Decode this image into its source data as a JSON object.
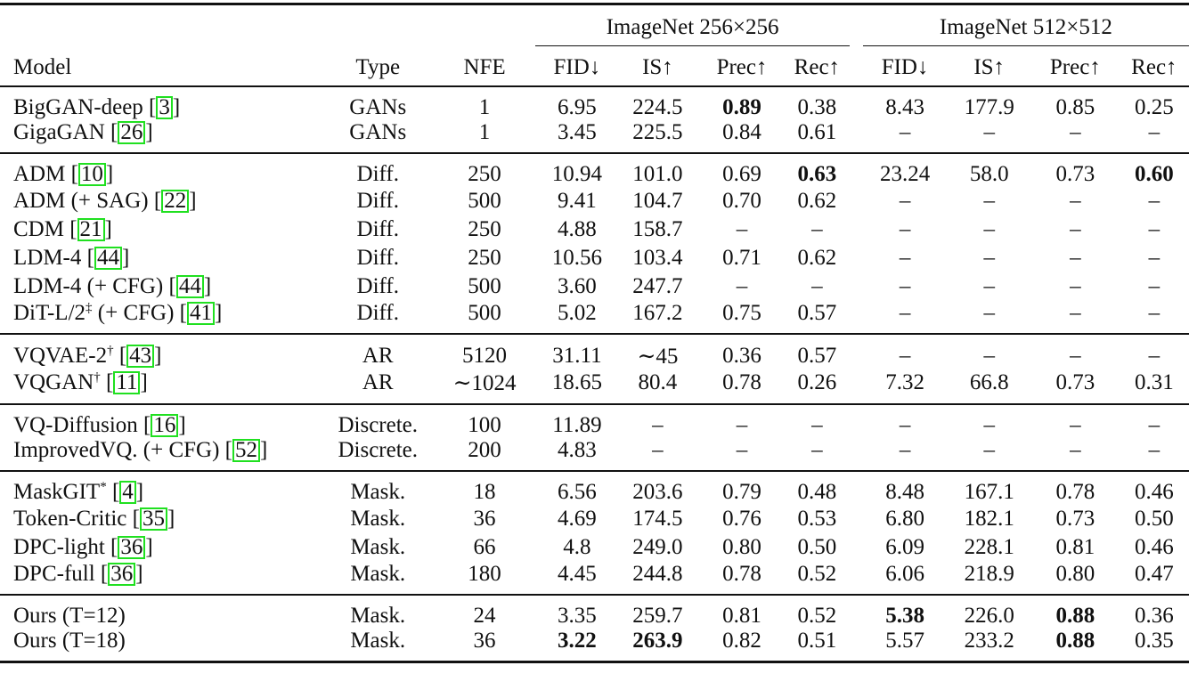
{
  "table": {
    "group_headers": [
      {
        "label": "ImageNet 256×256",
        "span": 4
      },
      {
        "label": "ImageNet 512×512",
        "span": 4
      }
    ],
    "columns": [
      "Model",
      "Type",
      "NFE",
      "FID↓",
      "IS↑",
      "Prec↑",
      "Rec↑",
      "FID↓",
      "IS↑",
      "Prec↑",
      "Rec↑"
    ],
    "sections": [
      {
        "rows": [
          {
            "model": "BigGAN-deep [",
            "sup": "",
            "cite": "3",
            "type": "GANs",
            "nfe": "1",
            "v": [
              "6.95",
              "224.5",
              "0.89",
              "0.38",
              "8.43",
              "177.9",
              "0.85",
              "0.25"
            ],
            "bold": [
              2
            ]
          },
          {
            "model": "GigaGAN [",
            "sup": "",
            "cite": "26",
            "type": "GANs",
            "nfe": "1",
            "v": [
              "3.45",
              "225.5",
              "0.84",
              "0.61",
              "–",
              "–",
              "–",
              "–"
            ],
            "bold": []
          }
        ]
      },
      {
        "rows": [
          {
            "model": "ADM [",
            "sup": "",
            "cite": "10",
            "type": "Diff.",
            "nfe": "250",
            "v": [
              "10.94",
              "101.0",
              "0.69",
              "0.63",
              "23.24",
              "58.0",
              "0.73",
              "0.60"
            ],
            "bold": [
              3,
              7
            ]
          },
          {
            "model": "ADM (+ SAG) [",
            "sup": "",
            "cite": "22",
            "type": "Diff.",
            "nfe": "500",
            "v": [
              "9.41",
              "104.7",
              "0.70",
              "0.62",
              "–",
              "–",
              "–",
              "–"
            ],
            "bold": []
          },
          {
            "model": "CDM [",
            "sup": "",
            "cite": "21",
            "type": "Diff.",
            "nfe": "250",
            "v": [
              "4.88",
              "158.7",
              "–",
              "–",
              "–",
              "–",
              "–",
              "–"
            ],
            "bold": []
          },
          {
            "model": "LDM-4 [",
            "sup": "",
            "cite": "44",
            "type": "Diff.",
            "nfe": "250",
            "v": [
              "10.56",
              "103.4",
              "0.71",
              "0.62",
              "–",
              "–",
              "–",
              "–"
            ],
            "bold": []
          },
          {
            "model": "LDM-4 (+ CFG) [",
            "sup": "",
            "cite": "44",
            "type": "Diff.",
            "nfe": "500",
            "v": [
              "3.60",
              "247.7",
              "–",
              "–",
              "–",
              "–",
              "–",
              "–"
            ],
            "bold": []
          },
          {
            "model": "DiT-L/2",
            "sup": "‡",
            "after_sup": " (+ CFG) [",
            "cite": "41",
            "type": "Diff.",
            "nfe": "500",
            "v": [
              "5.02",
              "167.2",
              "0.75",
              "0.57",
              "–",
              "–",
              "–",
              "–"
            ],
            "bold": []
          }
        ]
      },
      {
        "rows": [
          {
            "model": "VQVAE-2",
            "sup": "†",
            "after_sup": " [",
            "cite": "43",
            "type": "AR",
            "nfe": "5120",
            "v": [
              "31.11",
              "∼45",
              "0.36",
              "0.57",
              "–",
              "–",
              "–",
              "–"
            ],
            "bold": []
          },
          {
            "model": "VQGAN",
            "sup": "†",
            "after_sup": " [",
            "cite": "11",
            "type": "AR",
            "nfe": "∼1024",
            "v": [
              "18.65",
              "80.4",
              "0.78",
              "0.26",
              "7.32",
              "66.8",
              "0.73",
              "0.31"
            ],
            "bold": []
          }
        ]
      },
      {
        "rows": [
          {
            "model": "VQ-Diffusion [",
            "sup": "",
            "cite": "16",
            "type": "Discrete.",
            "nfe": "100",
            "v": [
              "11.89",
              "–",
              "–",
              "–",
              "–",
              "–",
              "–",
              "–"
            ],
            "bold": []
          },
          {
            "model": "ImprovedVQ. (+ CFG) [",
            "sup": "",
            "cite": "52",
            "type": "Discrete.",
            "nfe": "200",
            "v": [
              "4.83",
              "–",
              "–",
              "–",
              "–",
              "–",
              "–",
              "–"
            ],
            "bold": []
          }
        ]
      },
      {
        "rows": [
          {
            "model": "MaskGIT",
            "sup": "*",
            "after_sup": " [",
            "cite": "4",
            "type": "Mask.",
            "nfe": "18",
            "v": [
              "6.56",
              "203.6",
              "0.79",
              "0.48",
              "8.48",
              "167.1",
              "0.78",
              "0.46"
            ],
            "bold": []
          },
          {
            "model": "Token-Critic [",
            "sup": "",
            "cite": "35",
            "type": "Mask.",
            "nfe": "36",
            "v": [
              "4.69",
              "174.5",
              "0.76",
              "0.53",
              "6.80",
              "182.1",
              "0.73",
              "0.50"
            ],
            "bold": []
          },
          {
            "model": "DPC-light [",
            "sup": "",
            "cite": "36",
            "type": "Mask.",
            "nfe": "66",
            "v": [
              "4.8",
              "249.0",
              "0.80",
              "0.50",
              "6.09",
              "228.1",
              "0.81",
              "0.46"
            ],
            "bold": []
          },
          {
            "model": "DPC-full [",
            "sup": "",
            "cite": "36",
            "type": "Mask.",
            "nfe": "180",
            "v": [
              "4.45",
              "244.8",
              "0.78",
              "0.52",
              "6.06",
              "218.9",
              "0.80",
              "0.47"
            ],
            "bold": []
          }
        ]
      },
      {
        "rows": [
          {
            "model": "Ours (T=12)",
            "sup": "",
            "cite": "",
            "type": "Mask.",
            "nfe": "24",
            "v": [
              "3.35",
              "259.7",
              "0.81",
              "0.52",
              "5.38",
              "226.0",
              "0.88",
              "0.36"
            ],
            "bold": [
              4,
              6
            ]
          },
          {
            "model": "Ours (T=18)",
            "sup": "",
            "cite": "",
            "type": "Mask.",
            "nfe": "36",
            "v": [
              "3.22",
              "263.9",
              "0.82",
              "0.51",
              "5.57",
              "233.2",
              "0.88",
              "0.35"
            ],
            "bold": [
              0,
              1,
              6
            ]
          }
        ]
      }
    ]
  },
  "chart_data": {
    "type": "table",
    "columns": [
      "Model",
      "Type",
      "NFE",
      "256 FID↓",
      "256 IS↑",
      "256 Prec↑",
      "256 Rec↑",
      "512 FID↓",
      "512 IS↑",
      "512 Prec↑",
      "512 Rec↑"
    ],
    "rows": [
      [
        "BigGAN-deep [3]",
        "GANs",
        "1",
        "6.95",
        "224.5",
        "0.89",
        "0.38",
        "8.43",
        "177.9",
        "0.85",
        "0.25"
      ],
      [
        "GigaGAN [26]",
        "GANs",
        "1",
        "3.45",
        "225.5",
        "0.84",
        "0.61",
        "-",
        "-",
        "-",
        "-"
      ],
      [
        "ADM [10]",
        "Diff.",
        "250",
        "10.94",
        "101.0",
        "0.69",
        "0.63",
        "23.24",
        "58.0",
        "0.73",
        "0.60"
      ],
      [
        "ADM (+ SAG) [22]",
        "Diff.",
        "500",
        "9.41",
        "104.7",
        "0.70",
        "0.62",
        "-",
        "-",
        "-",
        "-"
      ],
      [
        "CDM [21]",
        "Diff.",
        "250",
        "4.88",
        "158.7",
        "-",
        "-",
        "-",
        "-",
        "-",
        "-"
      ],
      [
        "LDM-4 [44]",
        "Diff.",
        "250",
        "10.56",
        "103.4",
        "0.71",
        "0.62",
        "-",
        "-",
        "-",
        "-"
      ],
      [
        "LDM-4 (+ CFG) [44]",
        "Diff.",
        "500",
        "3.60",
        "247.7",
        "-",
        "-",
        "-",
        "-",
        "-",
        "-"
      ],
      [
        "DiT-L/2‡ (+ CFG) [41]",
        "Diff.",
        "500",
        "5.02",
        "167.2",
        "0.75",
        "0.57",
        "-",
        "-",
        "-",
        "-"
      ],
      [
        "VQVAE-2† [43]",
        "AR",
        "5120",
        "31.11",
        "~45",
        "0.36",
        "0.57",
        "-",
        "-",
        "-",
        "-"
      ],
      [
        "VQGAN† [11]",
        "AR",
        "~1024",
        "18.65",
        "80.4",
        "0.78",
        "0.26",
        "7.32",
        "66.8",
        "0.73",
        "0.31"
      ],
      [
        "VQ-Diffusion [16]",
        "Discrete.",
        "100",
        "11.89",
        "-",
        "-",
        "-",
        "-",
        "-",
        "-",
        "-"
      ],
      [
        "ImprovedVQ. (+ CFG) [52]",
        "Discrete.",
        "200",
        "4.83",
        "-",
        "-",
        "-",
        "-",
        "-",
        "-",
        "-"
      ],
      [
        "MaskGIT* [4]",
        "Mask.",
        "18",
        "6.56",
        "203.6",
        "0.79",
        "0.48",
        "8.48",
        "167.1",
        "0.78",
        "0.46"
      ],
      [
        "Token-Critic [35]",
        "Mask.",
        "36",
        "4.69",
        "174.5",
        "0.76",
        "0.53",
        "6.80",
        "182.1",
        "0.73",
        "0.50"
      ],
      [
        "DPC-light [36]",
        "Mask.",
        "66",
        "4.8",
        "249.0",
        "0.80",
        "0.50",
        "6.09",
        "228.1",
        "0.81",
        "0.46"
      ],
      [
        "DPC-full [36]",
        "Mask.",
        "180",
        "4.45",
        "244.8",
        "0.78",
        "0.52",
        "6.06",
        "218.9",
        "0.80",
        "0.47"
      ],
      [
        "Ours (T=12)",
        "Mask.",
        "24",
        "3.35",
        "259.7",
        "0.81",
        "0.52",
        "5.38",
        "226.0",
        "0.88",
        "0.36"
      ],
      [
        "Ours (T=18)",
        "Mask.",
        "36",
        "3.22",
        "263.9",
        "0.82",
        "0.51",
        "5.57",
        "233.2",
        "0.88",
        "0.35"
      ]
    ]
  }
}
